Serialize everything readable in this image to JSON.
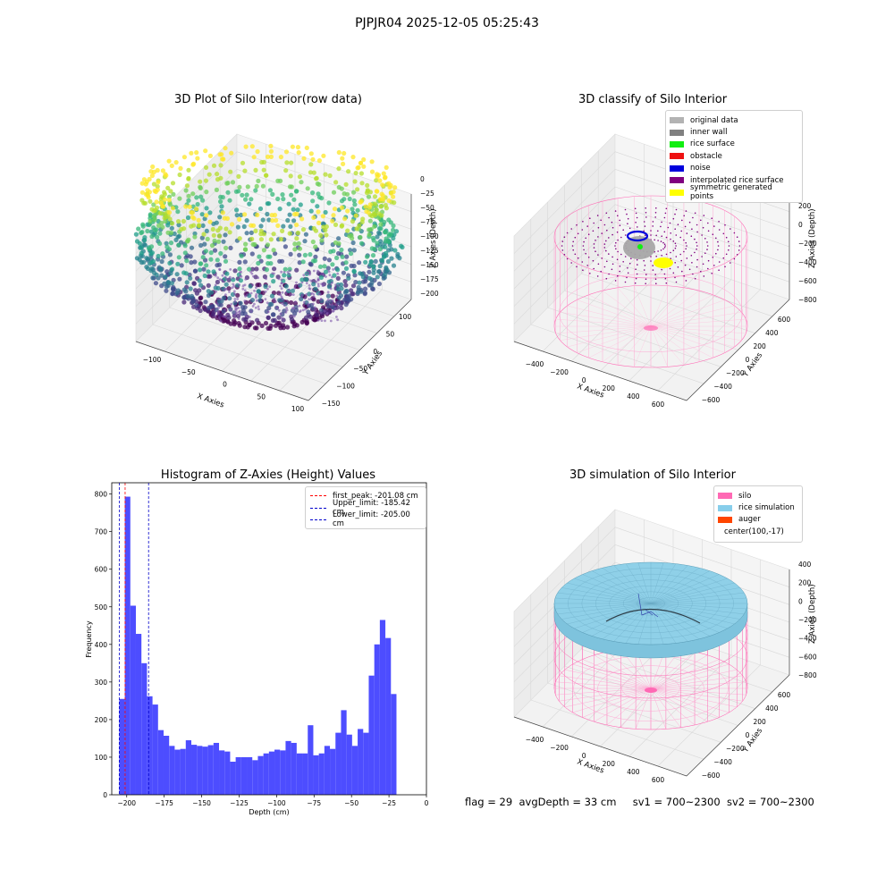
{
  "suptitle": "PJPJR04 2025-12-05 05:25:43",
  "panels": {
    "raw": {
      "title": "3D Plot of Silo Interior(row data)",
      "xlabel": "X Axies",
      "ylabel": "Y Axies",
      "zlabel": "Z Axies (Depth)",
      "xticks": [
        "−100",
        "−50",
        "0",
        "50",
        "100"
      ],
      "yticks": [
        "100",
        "50",
        "0",
        "−50",
        "−100",
        "−150"
      ],
      "zticks": [
        "0",
        "−25",
        "−50",
        "−75",
        "−100",
        "−125",
        "−150",
        "−175",
        "−200"
      ]
    },
    "classify": {
      "title": "3D classify of Silo Interior",
      "xlabel": "X Axies",
      "ylabel": "Y Axies",
      "zlabel": "Z Axies (Depth)",
      "xticks": [
        "−400",
        "−200",
        "0",
        "200",
        "400",
        "600"
      ],
      "yticks": [
        "600",
        "400",
        "200",
        "0",
        "−200",
        "−400",
        "−600"
      ],
      "zticks": [
        "200",
        "0",
        "−200",
        "−400",
        "−600",
        "−800"
      ],
      "ztop_partial": "0",
      "legend": [
        {
          "label": "original data",
          "color": "#b3b3b3"
        },
        {
          "label": "inner wall",
          "color": "#808080"
        },
        {
          "label": "rice surface",
          "color": "#11ee11"
        },
        {
          "label": "obstacle",
          "color": "#ee1111"
        },
        {
          "label": "noise",
          "color": "#0000dd"
        },
        {
          "label": "interpolated rice surface",
          "color": "#800080"
        },
        {
          "label": "symmetric generated points",
          "color": "#ffff00"
        }
      ]
    },
    "simulation": {
      "title": "3D simulation of Silo Interior",
      "xlabel": "X Axies",
      "ylabel": "Y Axies",
      "zlabel": "Z Axies (Depth)",
      "xticks": [
        "−400",
        "−200",
        "0",
        "200",
        "400",
        "600"
      ],
      "yticks": [
        "600",
        "400",
        "200",
        "0",
        "−200",
        "−400",
        "−600"
      ],
      "zticks": [
        "400",
        "200",
        "0",
        "−200",
        "−400",
        "−600",
        "−800"
      ],
      "legend": [
        {
          "label": "silo",
          "color": "#ff69b4"
        },
        {
          "label": "rice simulation",
          "color": "#87ceeb"
        },
        {
          "label": "auger",
          "color": "#ff4500"
        },
        {
          "label": "center(100,-17)",
          "color": ""
        }
      ]
    }
  },
  "footer": {
    "flag": "flag = 29",
    "avg_depth": "avgDepth = 33 cm",
    "sv1": "sv1 = 700~2300",
    "sv2": "sv2 = 700~2300"
  },
  "chart_data": {
    "type": "bar",
    "title": "Histogram of Z-Axies (Height) Values",
    "xlabel": "Depth (cm)",
    "ylabel": "Frequency",
    "xlim": [
      -210,
      0
    ],
    "ylim": [
      0,
      830
    ],
    "xticks": [
      -200,
      -175,
      -150,
      -125,
      -100,
      -75,
      -50,
      -25,
      0
    ],
    "yticks": [
      0,
      100,
      200,
      300,
      400,
      500,
      600,
      700,
      800
    ],
    "bin_width": 3.7,
    "bin_start": -205,
    "values": [
      255,
      793,
      503,
      428,
      350,
      262,
      240,
      172,
      157,
      130,
      120,
      122,
      145,
      133,
      130,
      128,
      132,
      138,
      118,
      115,
      88,
      100,
      100,
      100,
      92,
      103,
      110,
      115,
      120,
      118,
      143,
      138,
      110,
      110,
      185,
      105,
      110,
      130,
      122,
      165,
      225,
      160,
      130,
      175,
      165,
      317,
      400,
      465,
      417,
      268
    ],
    "bar_color": "#4d4dff",
    "vlines": [
      {
        "label": "first_peak: -201.08 cm",
        "x": -201.08,
        "color": "#ff0000"
      },
      {
        "label": "Upper_limit: -185.42 cm",
        "x": -185.42,
        "color": "#0000cc"
      },
      {
        "label": "Lower_limit: -205.00 cm",
        "x": -205.0,
        "color": "#0000cc"
      }
    ]
  }
}
